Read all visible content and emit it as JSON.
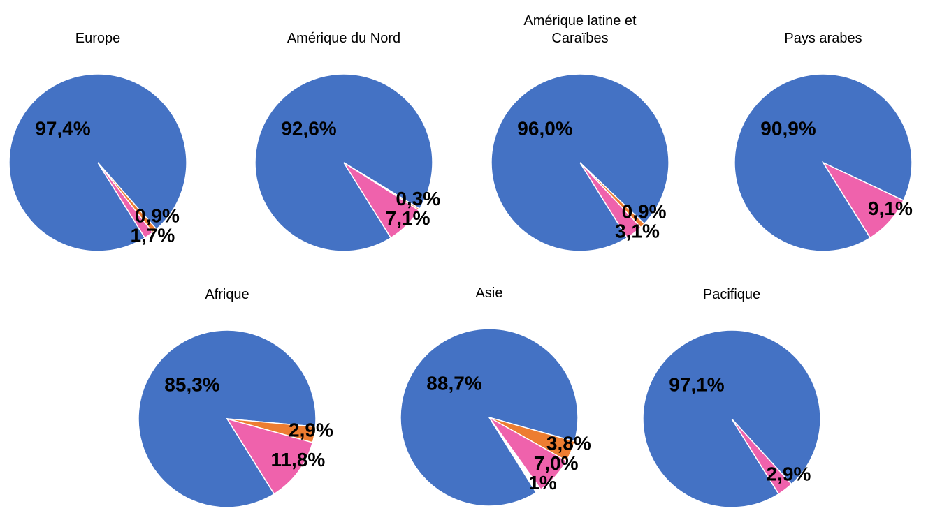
{
  "chart_data": [
    {
      "type": "pie",
      "title": "Europe",
      "values": [
        97.4,
        0.9,
        1.7
      ],
      "value_labels": [
        "97,4%",
        "0,9%",
        "1,7%"
      ],
      "colors": [
        "#4472c4",
        "#ed7d31",
        "#ef62ac"
      ]
    },
    {
      "type": "pie",
      "title": "Amérique du Nord",
      "values": [
        92.6,
        0.3,
        7.1
      ],
      "value_labels": [
        "92,6%",
        "0,3%",
        "7,1%"
      ],
      "colors": [
        "#4472c4",
        "#ed7d31",
        "#ef62ac"
      ]
    },
    {
      "type": "pie",
      "title": "Amérique latine et Caraïbes",
      "values": [
        96.0,
        0.9,
        3.1
      ],
      "value_labels": [
        "96,0%",
        "0,9%",
        "3,1%"
      ],
      "colors": [
        "#4472c4",
        "#ed7d31",
        "#ef62ac"
      ]
    },
    {
      "type": "pie",
      "title": "Pays arabes",
      "values": [
        90.9,
        9.1
      ],
      "value_labels": [
        "90,9%",
        "9,1%"
      ],
      "colors": [
        "#4472c4",
        "#ef62ac"
      ]
    },
    {
      "type": "pie",
      "title": "Afrique",
      "values": [
        85.3,
        2.9,
        11.8
      ],
      "value_labels": [
        "85,3%",
        "2,9%",
        "11,8%"
      ],
      "colors": [
        "#4472c4",
        "#ed7d31",
        "#ef62ac"
      ]
    },
    {
      "type": "pie",
      "title": "Asie",
      "values": [
        88.7,
        3.8,
        7.0,
        1
      ],
      "value_labels": [
        "88,7%",
        "3,8%",
        "7,0%",
        "1%"
      ],
      "colors": [
        "#4472c4",
        "#ed7d31",
        "#ef62ac",
        "#ffffff"
      ]
    },
    {
      "type": "pie",
      "title": "Pacifique",
      "values": [
        97.1,
        2.9
      ],
      "value_labels": [
        "97,1%",
        "2,9%"
      ],
      "colors": [
        "#4472c4",
        "#ef62ac"
      ]
    }
  ]
}
